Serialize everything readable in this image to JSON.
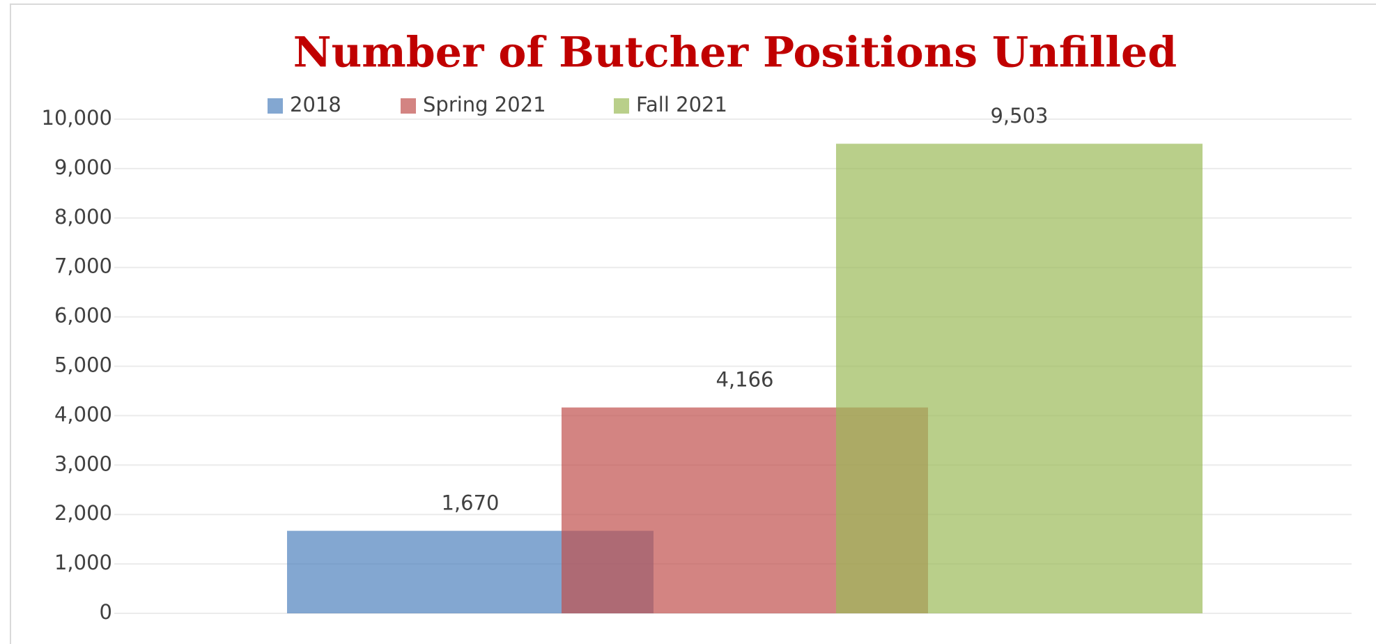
{
  "chart_data": {
    "type": "bar",
    "title": "Number of Butcher Positions Unfilled",
    "series": [
      {
        "name": "2018",
        "color": "#4f81bd",
        "values": [
          1670
        ],
        "value_labels": [
          "1,670"
        ]
      },
      {
        "name": "Spring 2021",
        "color": "#c0504d",
        "values": [
          4166
        ],
        "value_labels": [
          "4,166"
        ]
      },
      {
        "name": "Fall 2021",
        "color": "#9bbb59",
        "values": [
          9503
        ],
        "value_labels": [
          "9,503"
        ]
      }
    ],
    "ylim": [
      0,
      10000
    ],
    "yticks": [
      0,
      {
        "value": 1000,
        "label": "1,000"
      },
      {
        "value": 2000,
        "label": "2,000"
      },
      {
        "value": 3000,
        "label": "3,000"
      },
      {
        "value": 4000,
        "label": "4,000"
      },
      {
        "value": 5000,
        "label": "5,000"
      },
      {
        "value": 6000,
        "label": "6,000"
      },
      {
        "value": 7000,
        "label": "7,000"
      },
      {
        "value": 8000,
        "label": "8,000"
      },
      {
        "value": 9000,
        "label": "9,000"
      },
      {
        "value": 10000,
        "label": "10,000"
      }
    ],
    "grid": true,
    "legend": "top"
  }
}
